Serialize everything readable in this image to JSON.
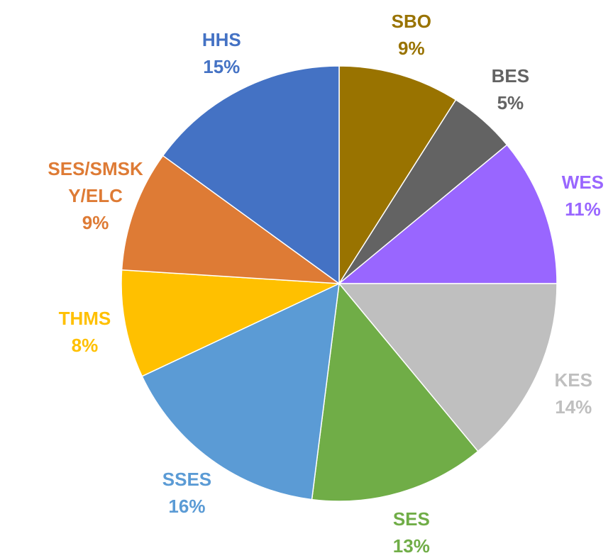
{
  "chart_data": {
    "type": "pie",
    "categories": [
      "SBO",
      "BES",
      "WES",
      "KES",
      "SES",
      "SSES",
      "THMS",
      "SES/SMSKY/ELC",
      "HHS"
    ],
    "values": [
      9,
      5,
      11,
      14,
      13,
      16,
      8,
      9,
      15
    ],
    "value_labels": [
      "9%",
      "5%",
      "11%",
      "14%",
      "13%",
      "16%",
      "8%",
      "9%",
      "15%"
    ],
    "colors": [
      "#997300",
      "#636363",
      "#9966ff",
      "#bfbfbf",
      "#70ad47",
      "#5b9bd5",
      "#ffc000",
      "#de7b35",
      "#4472c4"
    ]
  }
}
